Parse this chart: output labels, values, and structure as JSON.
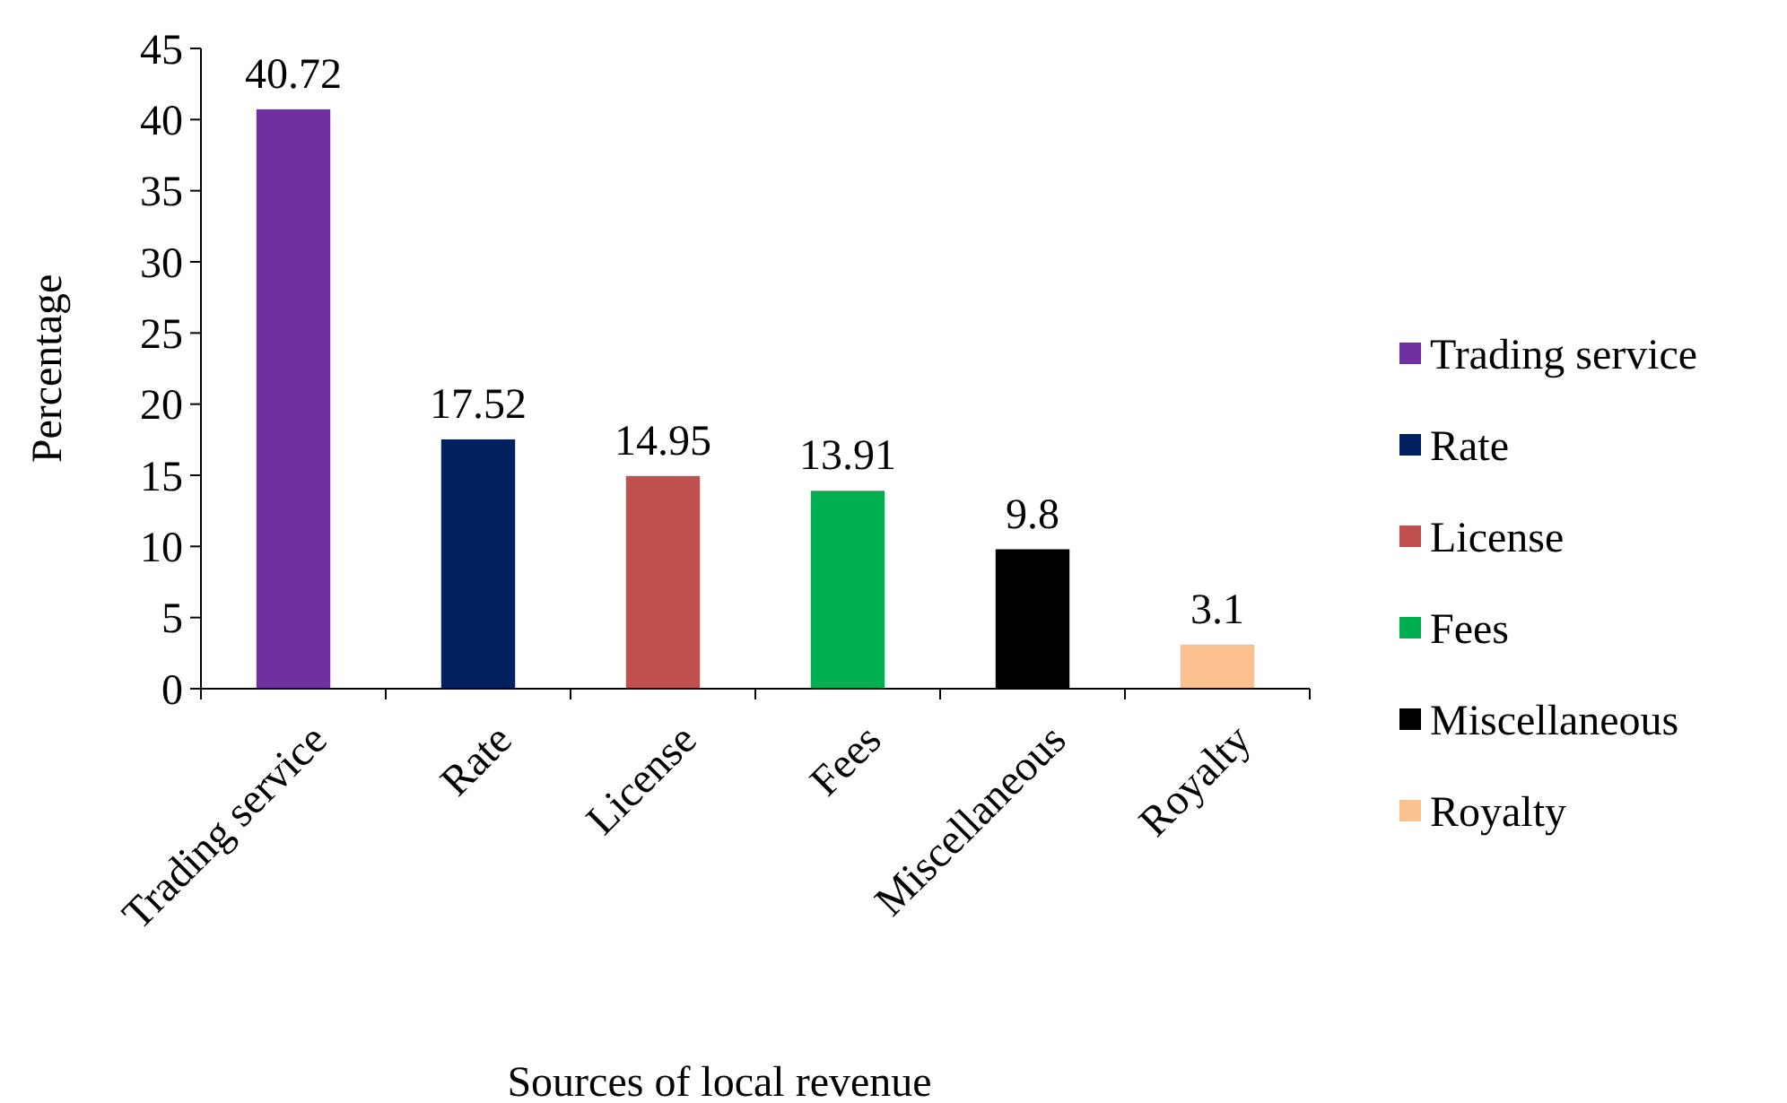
{
  "chart_data": {
    "type": "bar",
    "xlabel": "Sources of local revenue",
    "ylabel": "Percentage",
    "categories": [
      "Trading service",
      "Rate",
      "License",
      "Fees",
      "Miscellaneous",
      "Royalty"
    ],
    "series": [
      {
        "name": "Trading service",
        "color": "#7030a0",
        "values": [
          40.72,
          null,
          null,
          null,
          null,
          null
        ]
      },
      {
        "name": "Rate",
        "color": "#002060",
        "values": [
          null,
          17.52,
          null,
          null,
          null,
          null
        ]
      },
      {
        "name": "License",
        "color": "#c0504d",
        "values": [
          null,
          null,
          14.95,
          null,
          null,
          null
        ]
      },
      {
        "name": "Fees",
        "color": "#00b050",
        "values": [
          null,
          null,
          null,
          13.91,
          null,
          null
        ]
      },
      {
        "name": "Miscellaneous",
        "color": "#000000",
        "values": [
          null,
          null,
          null,
          null,
          9.8,
          null
        ]
      },
      {
        "name": "Royalty",
        "color": "#fac090",
        "values": [
          null,
          null,
          null,
          null,
          null,
          3.1
        ]
      }
    ],
    "ylim": [
      0,
      45
    ],
    "yticks": [
      0,
      5,
      10,
      15,
      20,
      25,
      30,
      35,
      40,
      45
    ],
    "data_labels": true,
    "grid": false,
    "legend": "right"
  }
}
